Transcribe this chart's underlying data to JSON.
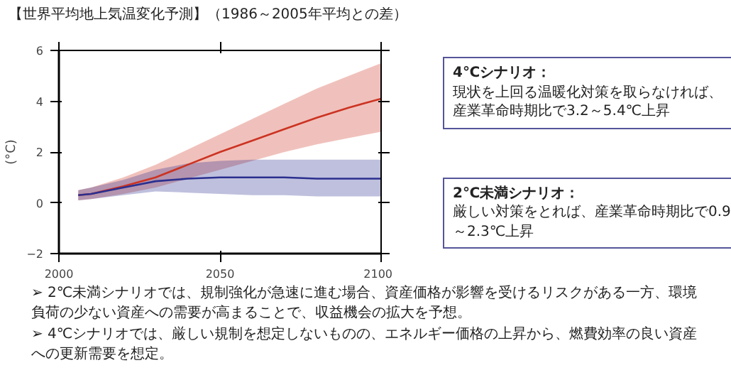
{
  "chart_data": {
    "type": "line",
    "title": "【世界平均地上気温変化予測】（1986～2005年平均との差）",
    "ylabel": "(°C)",
    "x": [
      2006,
      2010,
      2020,
      2030,
      2040,
      2050,
      2060,
      2070,
      2080,
      2090,
      2100
    ],
    "series": [
      {
        "color": "#cc3322",
        "values": [
          0.3,
          0.35,
          0.65,
          1.0,
          1.5,
          2.0,
          2.45,
          2.9,
          3.35,
          3.75,
          4.1
        ],
        "lower": [
          0.1,
          0.15,
          0.35,
          0.6,
          0.95,
          1.3,
          1.65,
          2.0,
          2.3,
          2.55,
          2.8
        ],
        "upper": [
          0.5,
          0.6,
          1.0,
          1.5,
          2.1,
          2.7,
          3.3,
          3.9,
          4.5,
          5.0,
          5.5
        ]
      },
      {
        "color": "#2b2f8f",
        "values": [
          0.3,
          0.35,
          0.6,
          0.85,
          0.95,
          1.0,
          1.0,
          1.0,
          0.95,
          0.95,
          0.95
        ],
        "lower": [
          0.1,
          0.15,
          0.3,
          0.45,
          0.4,
          0.35,
          0.3,
          0.3,
          0.25,
          0.25,
          0.25
        ],
        "upper": [
          0.5,
          0.6,
          0.9,
          1.3,
          1.55,
          1.65,
          1.7,
          1.7,
          1.7,
          1.7,
          1.7
        ]
      }
    ],
    "xlim": [
      2000,
      2100
    ],
    "xticks": [
      2000,
      2050,
      2100
    ],
    "ylim": [
      -2,
      6
    ],
    "yticks": [
      -2,
      0,
      2,
      4,
      6
    ],
    "grid": false,
    "line_style": "solid",
    "marker": "none",
    "annotations": [
      "4℃シナリオ：",
      "現状を上回る温暖化対策を取らなければ、産業革命時期比で3.2～5.4℃上昇",
      "2℃未満シナリオ：",
      "厳しい対策をとれば、産業革命時期比で0.9～2.3℃上昇",
      "➢ 2℃未満シナリオでは、規制強化が急速に進む場合、資産価格が影響を受けるリスクがある一方、環境負荷の少ない資産への需要が高まることで、収益機会の拡大を予想。",
      "➢ 4℃シナリオでは、厳しい規制を想定しないものの、エネルギー価格の上昇から、燃費効率の良い資産への更新需要を想定。"
    ]
  }
}
